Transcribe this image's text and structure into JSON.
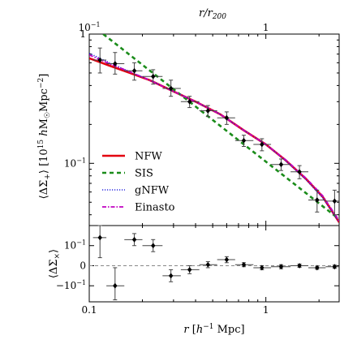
{
  "chart_data": [
    {
      "type": "line",
      "xscale": "log",
      "yscale": "log",
      "xlim": [
        0.1,
        2.6
      ],
      "ylim": [
        0.033,
        1.0
      ],
      "top_axis": {
        "label": "r/r_200",
        "ticks": [
          {
            "value": 0.1,
            "label": "10^-1"
          },
          {
            "value": 1,
            "label": "1"
          }
        ]
      },
      "ylabel": "⟨ΔΣ_+⟩ [10^15 h M☉ Mpc^-2]",
      "yticks": [
        {
          "value": 1,
          "label": "1"
        },
        {
          "value": 0.1,
          "label": "10^-1"
        }
      ],
      "legend": {
        "position": "lower-left",
        "entries": [
          {
            "name": "NFW",
            "style": "solid",
            "color": "#e3000f"
          },
          {
            "name": "SIS",
            "style": "dashed",
            "color": "#1a8c1a"
          },
          {
            "name": "gNFW",
            "style": "dotted",
            "color": "#2a2ae0"
          },
          {
            "name": "Einasto",
            "style": "dashdot",
            "color": "#c000c0"
          }
        ]
      },
      "series": [
        {
          "name": "NFW",
          "color": "#e3000f",
          "style": "solid",
          "x": [
            0.1,
            0.13,
            0.17,
            0.22,
            0.3,
            0.4,
            0.55,
            0.75,
            1.0,
            1.3,
            1.7,
            2.1,
            2.6
          ],
          "y": [
            0.65,
            0.57,
            0.5,
            0.44,
            0.36,
            0.3,
            0.24,
            0.18,
            0.14,
            0.105,
            0.075,
            0.055,
            0.035
          ]
        },
        {
          "name": "SIS",
          "color": "#1a8c1a",
          "style": "dashed",
          "x": [
            0.12,
            2.6
          ],
          "y": [
            1.0,
            0.037
          ]
        },
        {
          "name": "gNFW",
          "color": "#2a2ae0",
          "style": "dotted",
          "x": [
            0.1,
            0.13,
            0.17,
            0.22,
            0.3,
            0.4,
            0.55,
            0.75,
            1.0,
            1.3,
            1.7,
            2.1,
            2.6
          ],
          "y": [
            0.71,
            0.6,
            0.51,
            0.44,
            0.36,
            0.3,
            0.24,
            0.18,
            0.14,
            0.104,
            0.074,
            0.054,
            0.035
          ]
        },
        {
          "name": "Einasto",
          "color": "#c000c0",
          "style": "dashdot",
          "x": [
            0.1,
            0.13,
            0.17,
            0.22,
            0.3,
            0.4,
            0.55,
            0.75,
            1.0,
            1.3,
            1.7,
            2.1,
            2.6
          ],
          "y": [
            0.69,
            0.59,
            0.51,
            0.44,
            0.36,
            0.3,
            0.24,
            0.18,
            0.14,
            0.106,
            0.076,
            0.056,
            0.036
          ]
        }
      ],
      "points": {
        "marker": "diamond",
        "x": [
          0.115,
          0.14,
          0.18,
          0.23,
          0.29,
          0.37,
          0.47,
          0.6,
          0.75,
          0.95,
          1.22,
          1.55,
          1.95,
          2.45
        ],
        "y": [
          0.63,
          0.59,
          0.52,
          0.47,
          0.38,
          0.3,
          0.255,
          0.225,
          0.15,
          0.14,
          0.098,
          0.086,
          0.052,
          0.051
        ],
        "xerr": [
          [
            0.105,
            0.125
          ],
          [
            0.125,
            0.158
          ],
          [
            0.158,
            0.2
          ],
          [
            0.2,
            0.26
          ],
          [
            0.26,
            0.33
          ],
          [
            0.33,
            0.42
          ],
          [
            0.42,
            0.53
          ],
          [
            0.53,
            0.67
          ],
          [
            0.67,
            0.85
          ],
          [
            0.85,
            1.07
          ],
          [
            1.07,
            1.38
          ],
          [
            1.38,
            1.74
          ],
          [
            1.74,
            2.18
          ],
          [
            2.18,
            2.6
          ]
        ],
        "yerr": [
          [
            0.5,
            0.78
          ],
          [
            0.49,
            0.72
          ],
          [
            0.44,
            0.6
          ],
          [
            0.41,
            0.53
          ],
          [
            0.33,
            0.44
          ],
          [
            0.27,
            0.33
          ],
          [
            0.23,
            0.28
          ],
          [
            0.2,
            0.25
          ],
          [
            0.135,
            0.165
          ],
          [
            0.125,
            0.155
          ],
          [
            0.088,
            0.108
          ],
          [
            0.076,
            0.096
          ],
          [
            0.042,
            0.062
          ],
          [
            0.04,
            0.062
          ]
        ]
      }
    },
    {
      "type": "scatter",
      "xscale": "log",
      "xlim": [
        0.1,
        2.6
      ],
      "ylim": [
        -0.18,
        0.2
      ],
      "xlabel": "r [h^-1 Mpc]",
      "ylabel": "⟨ΔΣ_×⟩",
      "xticks": [
        {
          "value": 0.1,
          "label": "0.1"
        },
        {
          "value": 1,
          "label": "1"
        }
      ],
      "yticks": [
        {
          "value": 0.1,
          "label": "10^-1"
        },
        {
          "value": 0,
          "label": "0"
        },
        {
          "value": -0.1,
          "label": "−10^-1"
        }
      ],
      "zero_line": true,
      "points": {
        "marker": "diamond",
        "x": [
          0.115,
          0.14,
          0.18,
          0.23,
          0.29,
          0.37,
          0.47,
          0.6,
          0.75,
          0.95,
          1.22,
          1.55,
          1.95,
          2.45
        ],
        "y": [
          0.14,
          -0.1,
          0.13,
          0.1,
          -0.05,
          -0.02,
          0.005,
          0.03,
          0.005,
          -0.01,
          -0.005,
          0.0,
          -0.01,
          -0.005
        ],
        "xerr": [
          [
            0.105,
            0.125
          ],
          [
            0.125,
            0.158
          ],
          [
            0.158,
            0.2
          ],
          [
            0.2,
            0.26
          ],
          [
            0.26,
            0.33
          ],
          [
            0.33,
            0.42
          ],
          [
            0.42,
            0.53
          ],
          [
            0.53,
            0.67
          ],
          [
            0.67,
            0.85
          ],
          [
            0.85,
            1.07
          ],
          [
            1.07,
            1.38
          ],
          [
            1.38,
            1.74
          ],
          [
            1.74,
            2.18
          ],
          [
            2.18,
            2.6
          ]
        ],
        "yerr": [
          [
            0.04,
            0.2
          ],
          [
            -0.17,
            -0.01
          ],
          [
            0.1,
            0.16
          ],
          [
            0.07,
            0.13
          ],
          [
            -0.08,
            -0.02
          ],
          [
            -0.04,
            0.0
          ],
          [
            -0.01,
            0.02
          ],
          [
            0.015,
            0.045
          ],
          [
            -0.005,
            0.015
          ],
          [
            -0.02,
            0.0
          ],
          [
            -0.015,
            0.005
          ],
          [
            -0.008,
            0.008
          ],
          [
            -0.018,
            -0.002
          ],
          [
            -0.013,
            0.003
          ]
        ]
      }
    }
  ]
}
